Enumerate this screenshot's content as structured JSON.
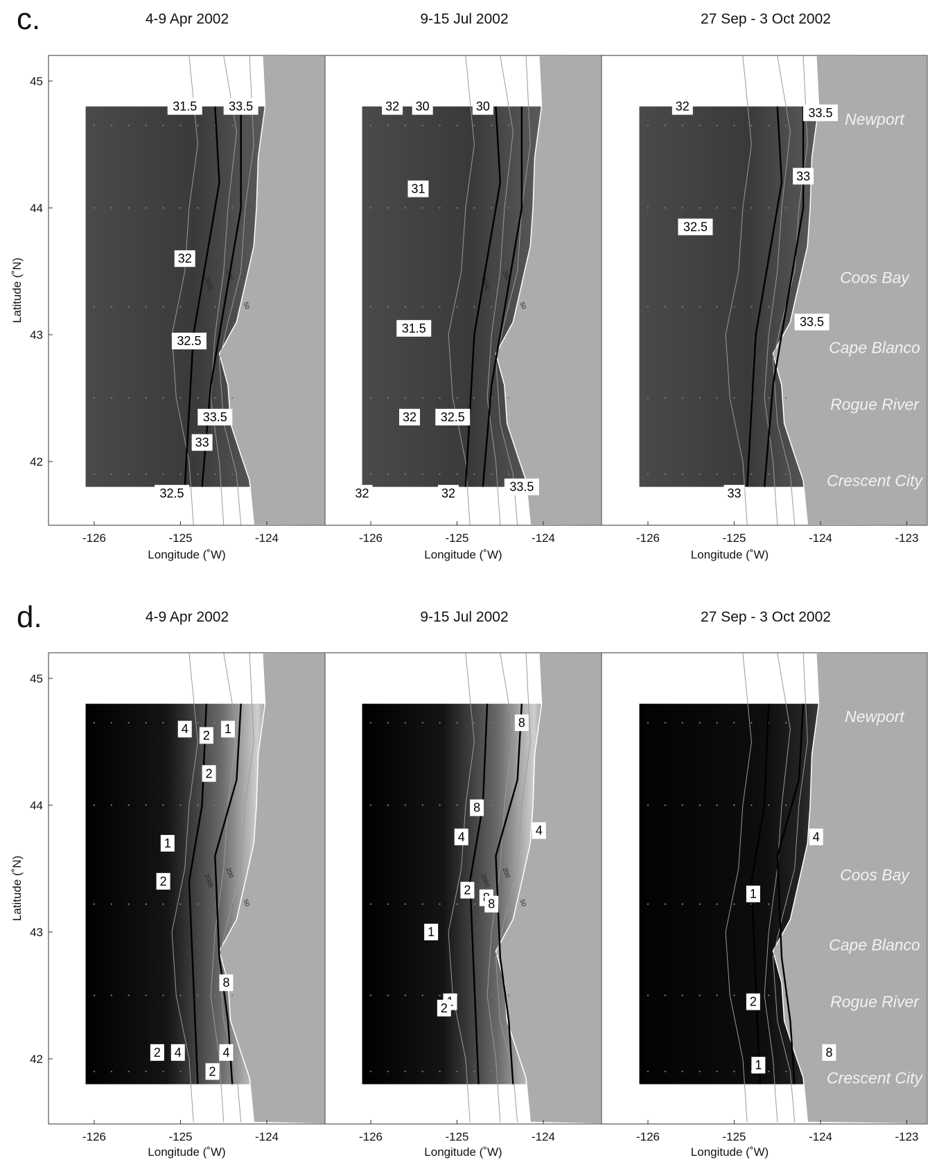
{
  "chart_data": [
    {
      "type": "heatmap",
      "panel": "c.",
      "maps": [
        {
          "subtitle": "4-9 Apr 2002",
          "contours": [
            "31.5",
            "33.5",
            "32",
            "32.5",
            "33.5",
            "33",
            "32.5"
          ],
          "contour_lat": [
            44.8,
            44.8,
            43.6,
            42.95,
            42.35,
            42.15,
            41.75
          ],
          "contour_lon": [
            -124.95,
            -124.3,
            -124.95,
            -124.9,
            -124.6,
            -124.75,
            -125.1
          ]
        },
        {
          "subtitle": "9-15 Jul 2002",
          "contours": [
            "32",
            "30",
            "30",
            "31",
            "31.5",
            "32",
            "32.5",
            "32",
            "32",
            "33.5"
          ],
          "contour_lat": [
            44.8,
            44.8,
            44.8,
            44.15,
            43.05,
            42.35,
            42.35,
            41.75,
            41.75,
            41.8
          ],
          "contour_lon": [
            -125.75,
            -125.4,
            -124.7,
            -125.45,
            -125.5,
            -125.55,
            -125.05,
            -126.1,
            -125.1,
            -124.25
          ]
        },
        {
          "subtitle": "27 Sep - 3 Oct 2002",
          "contours": [
            "32",
            "33.5",
            "33",
            "32.5",
            "33.5",
            "33"
          ],
          "contour_lat": [
            44.8,
            44.75,
            44.25,
            43.85,
            43.1,
            41.75
          ],
          "contour_lon": [
            -125.6,
            -124.0,
            -124.2,
            -125.45,
            -124.1,
            -125.0
          ]
        }
      ],
      "xlabel": "Longitude (˚W)",
      "ylabel": "Latitude (˚N)",
      "xticks": [
        "-126",
        "-125",
        "-124",
        "-123"
      ],
      "yticks": [
        "45",
        "44",
        "43",
        "42"
      ],
      "places": [
        "Newport",
        "Coos Bay",
        "Cape Blanco",
        "Rogue River",
        "Crescent City"
      ]
    },
    {
      "type": "heatmap",
      "panel": "d.",
      "maps": [
        {
          "subtitle": "4-9 Apr 2002",
          "contours": [
            "4",
            "2",
            "1",
            "2",
            "1",
            "2",
            "8",
            "2",
            "4",
            "4",
            "2"
          ],
          "contour_lat": [
            44.6,
            44.55,
            44.6,
            44.25,
            43.7,
            43.4,
            42.6,
            42.05,
            42.05,
            42.05,
            41.9
          ],
          "contour_lon": [
            -124.95,
            -124.7,
            -124.45,
            -124.67,
            -125.15,
            -125.2,
            -124.47,
            -125.27,
            -125.03,
            -124.47,
            -124.63
          ]
        },
        {
          "subtitle": "9-15 Jul 2002",
          "contours": [
            "8",
            "8",
            "4",
            "4",
            "2",
            "8",
            "8",
            "1",
            "1",
            "2"
          ],
          "contour_lat": [
            44.65,
            43.98,
            43.75,
            43.8,
            43.33,
            43.27,
            43.22,
            43.0,
            42.45,
            42.4
          ],
          "contour_lon": [
            -124.25,
            -124.77,
            -124.95,
            -124.05,
            -124.88,
            -124.66,
            -124.6,
            -125.3,
            -125.08,
            -125.15
          ]
        },
        {
          "subtitle": "27 Sep - 3 Oct 2002",
          "contours": [
            "4",
            "1",
            "2",
            "8",
            "1"
          ],
          "contour_lat": [
            43.75,
            43.3,
            42.45,
            42.05,
            41.95
          ],
          "contour_lon": [
            -124.05,
            -124.78,
            -124.78,
            -123.9,
            -124.72
          ]
        }
      ],
      "xlabel": "Longitude (˚W)",
      "ylabel": "Latitude (˚N)",
      "xticks": [
        "-126",
        "-125",
        "-124",
        "-123"
      ],
      "yticks": [
        "45",
        "44",
        "43",
        "42"
      ],
      "places": [
        "Newport",
        "Coos Bay",
        "Cape Blanco",
        "Rogue River",
        "Crescent City"
      ]
    }
  ],
  "axes": {
    "lon_min": -126.5,
    "lon_max": -123.0,
    "lat_min": 41.5,
    "lat_max": 45.2,
    "grid_lon_min": -126.1,
    "grid_lon_max": -124.0,
    "grid_lat_min": 41.8,
    "grid_lat_max": 44.8
  },
  "isobath_labels": [
    "2000",
    "200",
    "50"
  ],
  "colors": {
    "land": "#acacac",
    "c_field": "#404040",
    "d_field": "#0c0c0c",
    "label_bg": "#ffffff"
  }
}
